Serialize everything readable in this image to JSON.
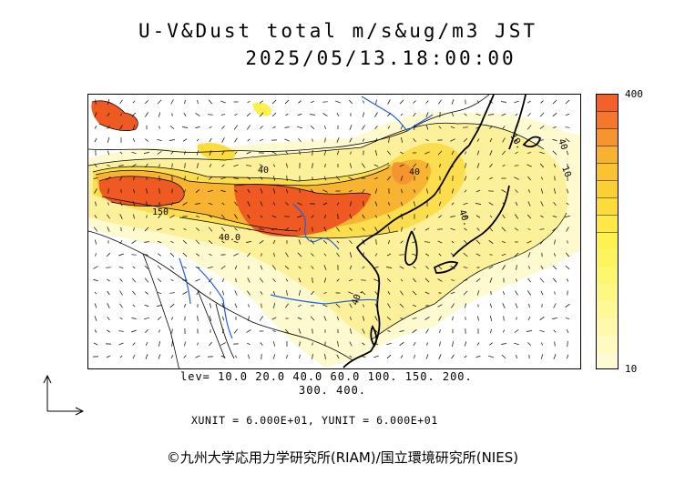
{
  "title": {
    "line1": "U-V&Dust total m/s&ug/m3 JST",
    "line2": "2025/05/13.18:00:00"
  },
  "colorbar": {
    "max_label": "400",
    "min_label": "10",
    "colors": [
      "#f2612b",
      "#f4782b",
      "#f6952f",
      "#f7b230",
      "#f9c332",
      "#fad035",
      "#fcdc3b",
      "#fde846",
      "#fef150",
      "#fef45e",
      "#fef66f",
      "#fef781",
      "#fef896",
      "#fef9ab",
      "#fefac0",
      "#fefbd4"
    ]
  },
  "levels": {
    "line1": "lev= 10.0 20.0 40.0 60.0 100. 150. 200.",
    "line2": "300. 400."
  },
  "units": "XUNIT = 6.000E+01, YUNIT = 6.000E+01",
  "contour_labels": [
    "150",
    "40.0",
    "40.",
    "40.",
    "10",
    "40",
    "10.",
    "40",
    "40"
  ],
  "credit": "©九州大学応用力学研究所(RIAM)/国立環境研究所(NIES)",
  "map_colors": {
    "high": "#ef5a22",
    "mid": "#f8b42f",
    "low": "#fdeb8a",
    "faint": "#fef9c9",
    "coast": "#000000",
    "river": "#1f5fe0"
  }
}
